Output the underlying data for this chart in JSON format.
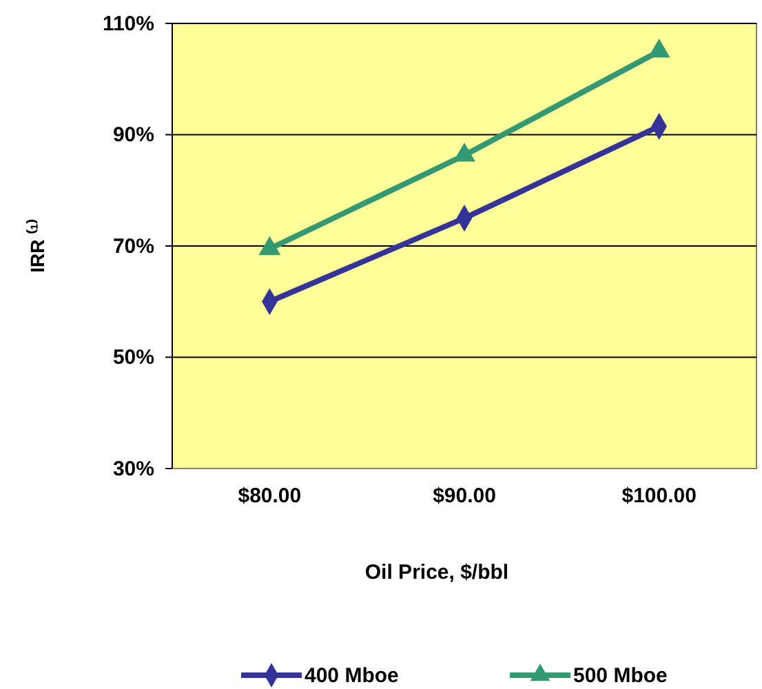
{
  "chart_data": {
    "type": "line",
    "xlabel": "Oil Price, $/bbl",
    "ylabel": "IRR ⁽¹⁾",
    "categories": [
      "$80.00",
      "$90.00",
      "$100.00"
    ],
    "series": [
      {
        "name": "400 Mboe",
        "color": "#333399",
        "marker": "diamond",
        "values": [
          60,
          75,
          91.5
        ]
      },
      {
        "name": "500 Mboe",
        "color": "#339973",
        "marker": "triangle",
        "values": [
          69.5,
          86.3,
          105
        ]
      }
    ],
    "ylim": [
      30,
      110
    ],
    "yticks": [
      {
        "value": 30,
        "label": "30%"
      },
      {
        "value": 50,
        "label": "50%"
      },
      {
        "value": 70,
        "label": "70%"
      },
      {
        "value": 90,
        "label": "90%"
      },
      {
        "value": 110,
        "label": "110%"
      }
    ],
    "grid": "y",
    "legend": "bottom",
    "line_style": "solid"
  }
}
